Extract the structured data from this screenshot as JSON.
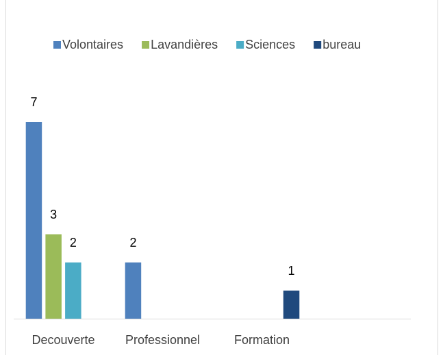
{
  "chart_data": {
    "type": "bar",
    "categories": [
      "Decouverte",
      "Professionnel",
      "Formation",
      null
    ],
    "series": [
      {
        "name": "Volontaires",
        "color": "#4f81bd",
        "values": [
          7,
          2,
          null,
          null
        ]
      },
      {
        "name": "Lavandières",
        "color": "#9bbb59",
        "values": [
          3,
          null,
          null,
          null
        ]
      },
      {
        "name": "Sciences",
        "color": "#4bacc6",
        "values": [
          2,
          null,
          null,
          null
        ]
      },
      {
        "name": "bureau",
        "color": "#1f497d",
        "values": [
          null,
          null,
          1,
          null
        ]
      }
    ],
    "ylim": [
      0,
      8
    ],
    "legend": "top"
  }
}
